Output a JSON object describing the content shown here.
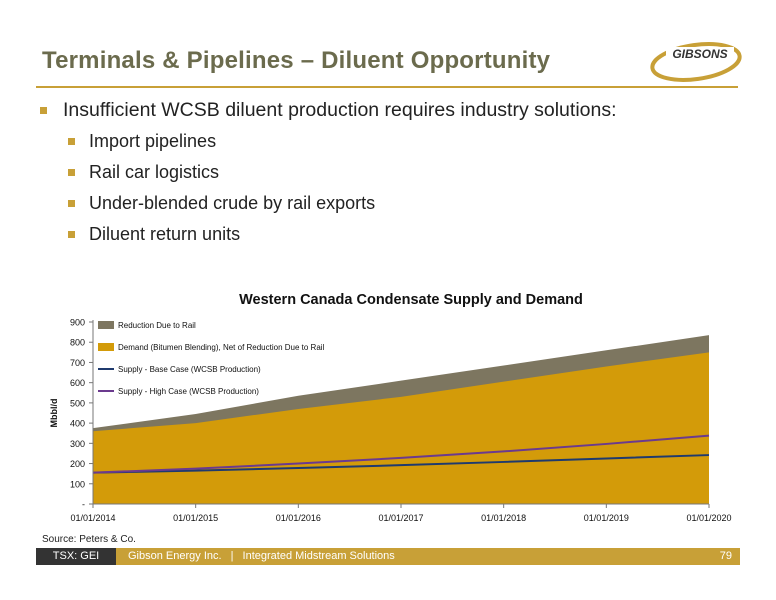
{
  "slide": {
    "title": "Terminals & Pipelines – Diluent Opportunity",
    "logo_text": "GIBSONS",
    "bullet_main": "Insufficient WCSB diluent production requires industry solutions:",
    "sub_bullets": [
      "Import pipelines",
      "Rail car logistics",
      "Under-blended crude by rail exports",
      "Diluent return units"
    ],
    "source": "Source: Peters & Co.",
    "footer": {
      "ticker": "TSX: GEI",
      "company": "Gibson Energy Inc.",
      "separator": "|",
      "tagline": "Integrated Midstream Solutions",
      "page_number": "79"
    }
  },
  "colors": {
    "accent": "#c8a037",
    "title": "#6b6b4d",
    "rail": "#7d7660",
    "demand": "#d39b09",
    "base": "#1f3a6e",
    "high": "#6b3a8e",
    "dark": "#333333"
  },
  "chart_data": {
    "type": "area",
    "title": "Western Canada Condensate Supply and Demand",
    "ylabel": "Mbbl/d",
    "xlabel": "",
    "x": [
      "01/01/2014",
      "01/01/2015",
      "01/01/2016",
      "01/01/2017",
      "01/01/2018",
      "01/01/2019",
      "01/01/2020"
    ],
    "ylim": [
      0,
      900
    ],
    "yticks": [
      "-",
      "100",
      "200",
      "300",
      "400",
      "500",
      "600",
      "700",
      "800",
      "900"
    ],
    "grid": false,
    "legend_position": "top-left",
    "series": [
      {
        "name": "Reduction Due to Rail",
        "kind": "area-stacked",
        "color": "#7d7660",
        "values": [
          15,
          45,
          65,
          80,
          80,
          80,
          85
        ]
      },
      {
        "name": "Demand (Bitumen Blending), Net of Reduction Due to Rail",
        "kind": "area",
        "color": "#d39b09",
        "values": [
          360,
          400,
          470,
          530,
          605,
          680,
          750
        ]
      },
      {
        "name": "Supply - Base Case (WCSB Production)",
        "kind": "line",
        "color": "#1f3a6e",
        "values": [
          155,
          165,
          178,
          192,
          208,
          225,
          242
        ]
      },
      {
        "name": "Supply - High Case (WCSB Production)",
        "kind": "line",
        "color": "#6b3a8e",
        "values": [
          155,
          175,
          200,
          228,
          260,
          297,
          338
        ]
      }
    ]
  }
}
